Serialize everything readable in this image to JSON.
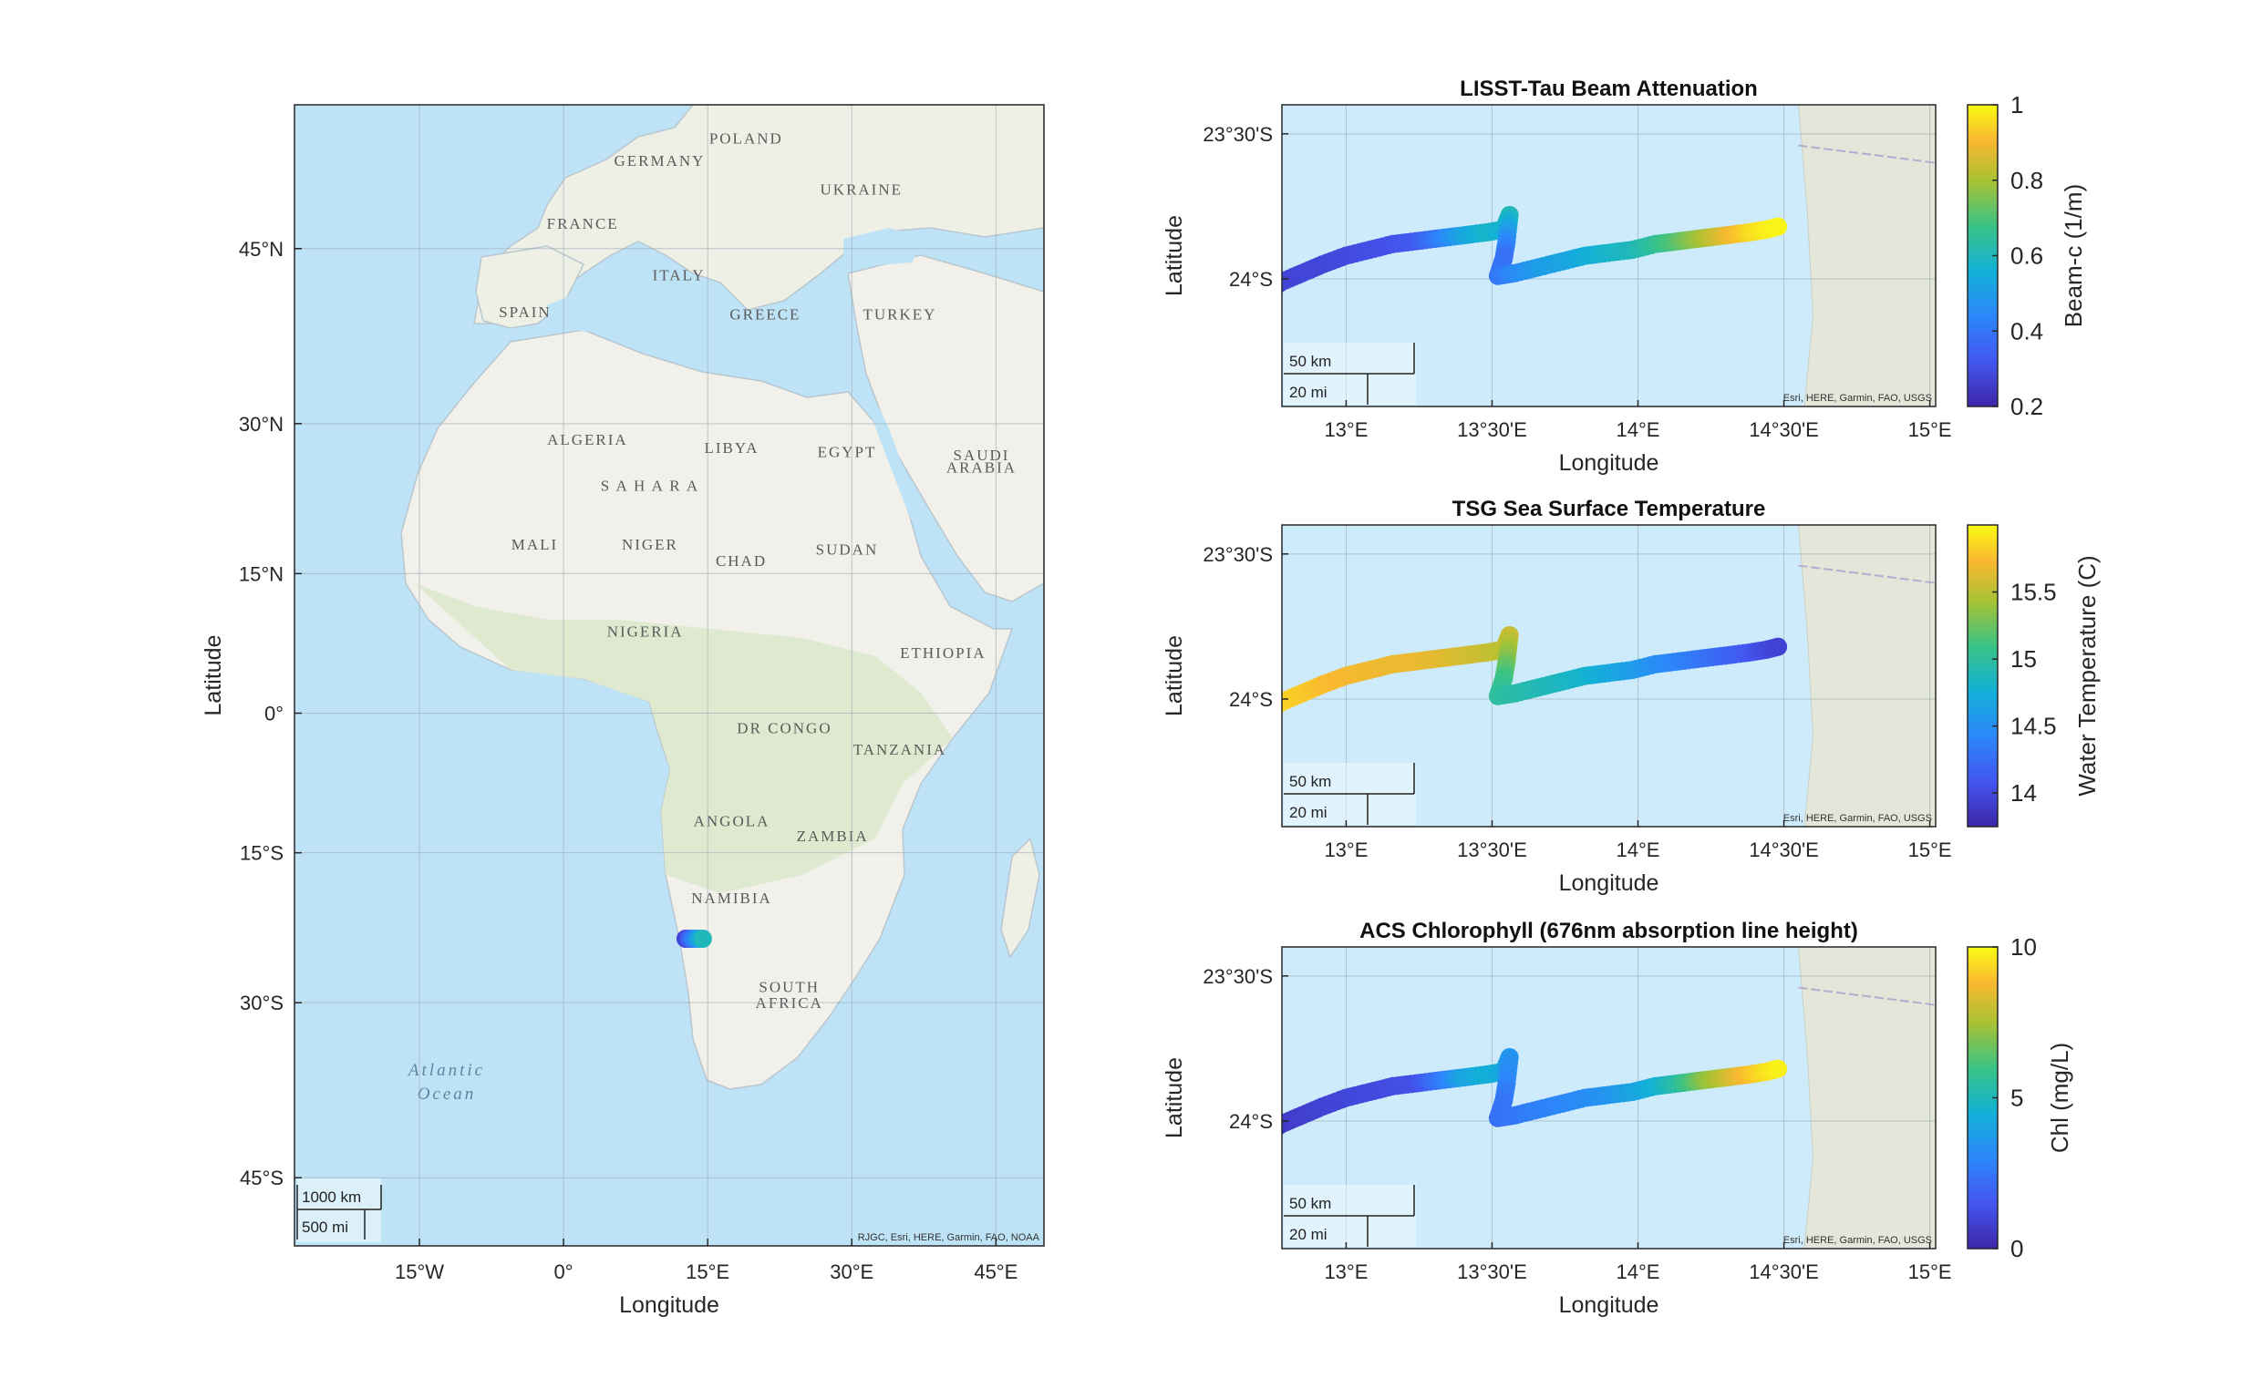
{
  "colors": {
    "ocean": "#cbe9f8",
    "ocean_deep": "#a9d7f2",
    "land": "#f1f0ea",
    "land_green": "#dfe9cf",
    "coast_land": "#e3e6d9",
    "axis": "#262626",
    "grid": "#b0b8bf",
    "track_gray": "#b9a9d0"
  },
  "map": {
    "xlabel": "Longitude",
    "ylabel": "Latitude",
    "lon_range": [
      -28,
      50
    ],
    "lat_range": [
      -50,
      55
    ],
    "x_ticks": [
      {
        "value": -15,
        "label": "15°W"
      },
      {
        "value": 0,
        "label": "0°"
      },
      {
        "value": 15,
        "label": "15°E"
      },
      {
        "value": 30,
        "label": "30°E"
      },
      {
        "value": 45,
        "label": "45°E"
      }
    ],
    "y_ticks": [
      {
        "value": 45,
        "label": "45°N"
      },
      {
        "value": 30,
        "label": "30°N"
      },
      {
        "value": 15,
        "label": "15°N"
      },
      {
        "value": 0,
        "label": "0°"
      },
      {
        "value": -15,
        "label": "15°S"
      },
      {
        "value": -30,
        "label": "30°S"
      },
      {
        "value": -45,
        "label": "45°S"
      }
    ],
    "country_labels": [
      {
        "text": "POLAND",
        "lon": 19,
        "lat": 52.5
      },
      {
        "text": "GERMANY",
        "lon": 10,
        "lat": 51
      },
      {
        "text": "UKRAINE",
        "lon": 31,
        "lat": 49
      },
      {
        "text": "FRANCE",
        "lon": 2,
        "lat": 46.5
      },
      {
        "text": "ITALY",
        "lon": 12,
        "lat": 42.5
      },
      {
        "text": "SPAIN",
        "lon": -4,
        "lat": 39.5
      },
      {
        "text": "GREECE",
        "lon": 21,
        "lat": 39.3
      },
      {
        "text": "TURKEY",
        "lon": 35,
        "lat": 39.3
      },
      {
        "text": "ALGERIA",
        "lon": 2.5,
        "lat": 28
      },
      {
        "text": "LIBYA",
        "lon": 17.5,
        "lat": 27.2
      },
      {
        "text": "EGYPT",
        "lon": 29.5,
        "lat": 26.8
      },
      {
        "text": "SAUDI",
        "lon": 43.5,
        "lat": 26.5
      },
      {
        "text": "ARABIA",
        "lon": 43.5,
        "lat": 25.3
      },
      {
        "text": "S A H A R A",
        "lon": 9,
        "lat": 23.5
      },
      {
        "text": "MALI",
        "lon": -3,
        "lat": 17.5
      },
      {
        "text": "NIGER",
        "lon": 9,
        "lat": 17.5
      },
      {
        "text": "CHAD",
        "lon": 18.5,
        "lat": 15.8
      },
      {
        "text": "SUDAN",
        "lon": 29.5,
        "lat": 17
      },
      {
        "text": "NIGERIA",
        "lon": 8.5,
        "lat": 8.3
      },
      {
        "text": "ETHIOPIA",
        "lon": 39.5,
        "lat": 6
      },
      {
        "text": "DR CONGO",
        "lon": 23,
        "lat": -2.2
      },
      {
        "text": "TANZANIA",
        "lon": 35,
        "lat": -4.5
      },
      {
        "text": "ANGOLA",
        "lon": 17.5,
        "lat": -12.2
      },
      {
        "text": "ZAMBIA",
        "lon": 28,
        "lat": -13.8
      },
      {
        "text": "NAMIBIA",
        "lon": 17.5,
        "lat": -20.2
      },
      {
        "text": "SOUTH",
        "lon": 23.5,
        "lat": -29
      },
      {
        "text": "AFRICA",
        "lon": 23.5,
        "lat": -30.5
      }
    ],
    "ocean_label_1": "Atlantic",
    "ocean_label_2": "Ocean",
    "scale_km": "1000 km",
    "scale_mi": "500 mi",
    "attribution": "RJGC, Esri, HERE, Garmin, FAO, NOAA",
    "track_marker": {
      "lon_start": 12.7,
      "lon_end": 14.5,
      "lat": -23.8
    }
  },
  "track": {
    "lon": [
      12.72,
      12.78,
      12.85,
      12.92,
      13.0,
      13.08,
      13.16,
      13.24,
      13.32,
      13.4,
      13.48,
      13.54,
      13.56,
      13.55,
      13.54,
      13.52,
      13.58,
      13.66,
      13.74,
      13.82,
      13.9,
      13.98,
      14.06,
      14.14,
      14.22,
      14.3,
      14.38,
      14.44,
      14.48
    ],
    "lat": [
      -24.05,
      -24.01,
      -23.98,
      -23.95,
      -23.92,
      -23.9,
      -23.88,
      -23.87,
      -23.86,
      -23.85,
      -23.84,
      -23.83,
      -23.78,
      -23.87,
      -23.93,
      -23.99,
      -23.98,
      -23.96,
      -23.94,
      -23.92,
      -23.91,
      -23.9,
      -23.88,
      -23.87,
      -23.86,
      -23.85,
      -23.84,
      -23.83,
      -23.82
    ]
  },
  "chart_data": [
    {
      "type": "scatter",
      "title": "LISST-Tau Beam Attenuation",
      "xlabel": "Longitude",
      "ylabel": "Latitude",
      "colorbar_label": "Beam-c (1/m)",
      "clim": [
        0.2,
        1.0
      ],
      "colorbar_ticks": [
        {
          "value": 1.0,
          "label": "1"
        },
        {
          "value": 0.8,
          "label": "0.8"
        },
        {
          "value": 0.6,
          "label": "0.6"
        },
        {
          "value": 0.4,
          "label": "0.4"
        },
        {
          "value": 0.2,
          "label": "0.2"
        }
      ],
      "x_ticks": [
        {
          "value": 13.0,
          "label": "13°E"
        },
        {
          "value": 13.5,
          "label": "13°30'E"
        },
        {
          "value": 14.0,
          "label": "14°E"
        },
        {
          "value": 14.5,
          "label": "14°30'E"
        },
        {
          "value": 15.0,
          "label": "15°E"
        }
      ],
      "y_ticks": [
        {
          "value": -23.5,
          "label": "23°30'S"
        },
        {
          "value": -24.0,
          "label": "24°S"
        }
      ],
      "xlim": [
        12.78,
        15.02
      ],
      "ylim": [
        -24.44,
        -23.4
      ],
      "values": [
        0.25,
        0.27,
        0.28,
        0.28,
        0.29,
        0.3,
        0.31,
        0.33,
        0.42,
        0.52,
        0.58,
        0.56,
        0.6,
        0.45,
        0.38,
        0.4,
        0.45,
        0.5,
        0.52,
        0.55,
        0.58,
        0.6,
        0.65,
        0.72,
        0.8,
        0.88,
        0.95,
        0.98,
        0.99
      ],
      "scale_km": "50 km",
      "scale_mi": "20 mi",
      "attribution": "Esri, HERE, Garmin, FAO, USGS"
    },
    {
      "type": "scatter",
      "title": "TSG Sea Surface Temperature",
      "xlabel": "Longitude",
      "ylabel": "Latitude",
      "colorbar_label": "Water Temperature (C)",
      "clim": [
        13.75,
        16.0
      ],
      "colorbar_ticks": [
        {
          "value": 15.5,
          "label": "15.5"
        },
        {
          "value": 15.0,
          "label": "15"
        },
        {
          "value": 14.5,
          "label": "14.5"
        },
        {
          "value": 14.0,
          "label": "14"
        }
      ],
      "x_ticks": [
        {
          "value": 13.0,
          "label": "13°E"
        },
        {
          "value": 13.5,
          "label": "13°30'E"
        },
        {
          "value": 14.0,
          "label": "14°E"
        },
        {
          "value": 14.5,
          "label": "14°30'E"
        },
        {
          "value": 15.0,
          "label": "15°E"
        }
      ],
      "y_ticks": [
        {
          "value": -23.5,
          "label": "23°30'S"
        },
        {
          "value": -24.0,
          "label": "24°S"
        }
      ],
      "xlim": [
        12.78,
        15.02
      ],
      "ylim": [
        -24.44,
        -23.4
      ],
      "values": [
        15.95,
        15.85,
        15.8,
        15.75,
        15.72,
        15.7,
        15.68,
        15.68,
        15.65,
        15.6,
        15.55,
        15.5,
        15.55,
        15.3,
        15.1,
        15.0,
        14.95,
        14.9,
        14.85,
        14.8,
        14.7,
        14.6,
        14.5,
        14.4,
        14.3,
        14.2,
        14.1,
        14.0,
        13.95
      ],
      "scale_km": "50 km",
      "scale_mi": "20 mi",
      "attribution": "Esri, HERE, Garmin, FAO, USGS"
    },
    {
      "type": "scatter",
      "title": "ACS Chlorophyll (676nm absorption line height)",
      "xlabel": "Longitude",
      "ylabel": "Latitude",
      "colorbar_label": "Chl (mg/L)",
      "clim": [
        0,
        10
      ],
      "colorbar_ticks": [
        {
          "value": 10,
          "label": "10"
        },
        {
          "value": 5,
          "label": "5"
        },
        {
          "value": 0,
          "label": "0"
        }
      ],
      "x_ticks": [
        {
          "value": 13.0,
          "label": "13°E"
        },
        {
          "value": 13.5,
          "label": "13°30'E"
        },
        {
          "value": 14.0,
          "label": "14°E"
        },
        {
          "value": 14.5,
          "label": "14°30'E"
        },
        {
          "value": 15.0,
          "label": "15°E"
        }
      ],
      "y_ticks": [
        {
          "value": -23.5,
          "label": "23°30'S"
        },
        {
          "value": -24.0,
          "label": "24°S"
        }
      ],
      "xlim": [
        12.78,
        15.02
      ],
      "ylim": [
        -24.44,
        -23.4
      ],
      "values": [
        0.5,
        0.6,
        0.8,
        0.9,
        1.0,
        1.1,
        1.2,
        1.3,
        2.5,
        4.0,
        4.5,
        4.2,
        3.5,
        3.0,
        2.5,
        2.3,
        2.5,
        2.8,
        3.0,
        3.2,
        3.5,
        4.0,
        4.5,
        5.5,
        7.0,
        8.0,
        9.0,
        9.5,
        9.8
      ],
      "scale_km": "50 km",
      "scale_mi": "20 mi",
      "attribution": "Esri, HERE, Garmin, FAO, USGS"
    }
  ]
}
